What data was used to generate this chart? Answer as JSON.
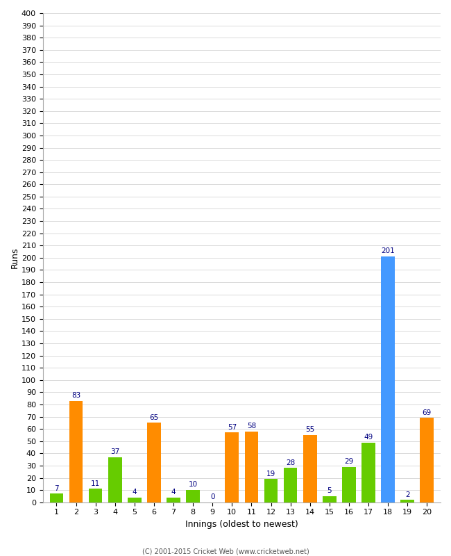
{
  "innings": [
    1,
    2,
    3,
    4,
    5,
    6,
    7,
    8,
    9,
    10,
    11,
    12,
    13,
    14,
    15,
    16,
    17,
    18,
    19,
    20
  ],
  "values": [
    7,
    83,
    11,
    37,
    4,
    65,
    4,
    10,
    0,
    57,
    58,
    19,
    28,
    55,
    5,
    29,
    49,
    201,
    2,
    69
  ],
  "colors": [
    "#66cc00",
    "#ff8c00",
    "#66cc00",
    "#66cc00",
    "#66cc00",
    "#ff8c00",
    "#66cc00",
    "#66cc00",
    "#66cc00",
    "#ff8c00",
    "#ff8c00",
    "#66cc00",
    "#66cc00",
    "#ff8c00",
    "#66cc00",
    "#66cc00",
    "#66cc00",
    "#4499ff",
    "#66cc00",
    "#ff8c00"
  ],
  "label_color": "#000080",
  "ylabel": "Runs",
  "xlabel": "Innings (oldest to newest)",
  "ylim": [
    0,
    400
  ],
  "yticks": [
    0,
    10,
    20,
    30,
    40,
    50,
    60,
    70,
    80,
    90,
    100,
    110,
    120,
    130,
    140,
    150,
    160,
    170,
    180,
    190,
    200,
    210,
    220,
    230,
    240,
    250,
    260,
    270,
    280,
    290,
    300,
    310,
    320,
    330,
    340,
    350,
    360,
    370,
    380,
    390,
    400
  ],
  "footer": "(C) 2001-2015 Cricket Web (www.cricketweb.net)",
  "bg_color": "#ffffff",
  "grid_color": "#cccccc",
  "bar_width": 0.7
}
